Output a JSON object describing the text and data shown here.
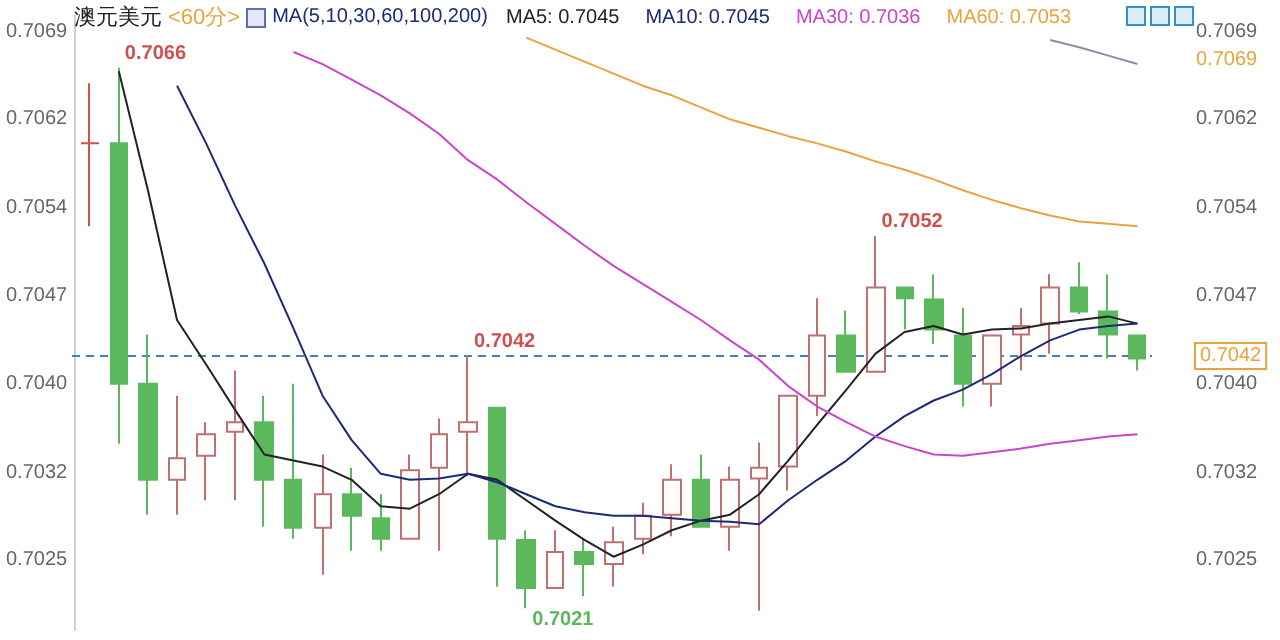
{
  "chart_data": {
    "type": "candlestick",
    "title": "澳元美元",
    "subtitle": "<60分>",
    "categories": [
      null,
      null,
      null,
      null,
      null,
      null,
      null,
      null,
      null,
      null,
      null,
      null,
      null,
      null,
      null,
      null,
      null,
      null,
      null,
      null,
      null,
      null,
      null,
      null,
      null,
      null,
      null,
      null,
      null,
      null,
      null,
      null,
      null,
      null,
      null,
      null,
      null
    ],
    "ohlc": [
      [
        0.70597,
        0.70647,
        0.70528,
        0.70597
      ],
      [
        0.70597,
        0.7066,
        0.70347,
        0.70397
      ],
      [
        0.70397,
        0.70438,
        0.70288,
        0.70317
      ],
      [
        0.70317,
        0.70387,
        0.70288,
        0.70335
      ],
      [
        0.70337,
        0.70365,
        0.703,
        0.70355
      ],
      [
        0.70357,
        0.70408,
        0.703,
        0.70365
      ],
      [
        0.70365,
        0.70387,
        0.70278,
        0.70317
      ],
      [
        0.70317,
        0.70397,
        0.70268,
        0.70277
      ],
      [
        0.70277,
        0.70338,
        0.70238,
        0.70305
      ],
      [
        0.70305,
        0.70327,
        0.70258,
        0.70287
      ],
      [
        0.70285,
        0.70305,
        0.70258,
        0.70268
      ],
      [
        0.70268,
        0.70338,
        0.70268,
        0.70325
      ],
      [
        0.70327,
        0.70368,
        0.70258,
        0.70355
      ],
      [
        0.70357,
        0.7042,
        0.7032,
        0.70365
      ],
      [
        0.70377,
        0.70377,
        0.70228,
        0.70268
      ],
      [
        0.70267,
        0.70275,
        0.7021,
        0.70227
      ],
      [
        0.70227,
        0.70275,
        0.70227,
        0.70257
      ],
      [
        0.70257,
        0.70268,
        0.7022,
        0.70247
      ],
      [
        0.70247,
        0.70278,
        0.70228,
        0.70265
      ],
      [
        0.70268,
        0.70298,
        0.70255,
        0.70287
      ],
      [
        0.70288,
        0.7033,
        0.7027,
        0.70317
      ],
      [
        0.70317,
        0.70338,
        0.70278,
        0.70278
      ],
      [
        0.70278,
        0.70328,
        0.70258,
        0.70317
      ],
      [
        0.70318,
        0.70348,
        0.70208,
        0.70327
      ],
      [
        0.70328,
        0.70387,
        0.70308,
        0.70387
      ],
      [
        0.70387,
        0.70468,
        0.7037,
        0.70437
      ],
      [
        0.70437,
        0.70458,
        0.70407,
        0.70407
      ],
      [
        0.70407,
        0.7052,
        0.70407,
        0.70477
      ],
      [
        0.70477,
        0.70477,
        0.70442,
        0.70468
      ],
      [
        0.70467,
        0.70488,
        0.7043,
        0.70442
      ],
      [
        0.70437,
        0.7046,
        0.70378,
        0.70397
      ],
      [
        0.70397,
        0.70437,
        0.70378,
        0.70437
      ],
      [
        0.70438,
        0.7046,
        0.70408,
        0.70445
      ],
      [
        0.70447,
        0.70488,
        0.70422,
        0.70477
      ],
      [
        0.70477,
        0.70498,
        0.70455,
        0.70457
      ],
      [
        0.70457,
        0.70488,
        0.70418,
        0.70438
      ],
      [
        0.70437,
        0.70437,
        0.70408,
        0.70418
      ]
    ],
    "colors": [
      "#d05050",
      "#5cb85c",
      "#5cb85c",
      "#c07070",
      "#c07070",
      "#c07070",
      "#5cb85c",
      "#5cb85c",
      "#c07070",
      "#5cb85c",
      "#5cb85c",
      "#c07070",
      "#c07070",
      "#c07070",
      "#5cb85c",
      "#5cb85c",
      "#c07070",
      "#5cb85c",
      "#c07070",
      "#c07070",
      "#c07070",
      "#5cb85c",
      "#c07070",
      "#c07070",
      "#c07070",
      "#c07070",
      "#5cb85c",
      "#c07070",
      "#5cb85c",
      "#5cb85c",
      "#5cb85c",
      "#c07070",
      "#c07070",
      "#c07070",
      "#5cb85c",
      "#5cb85c",
      "#5cb85c"
    ],
    "series": [
      {
        "type": "line",
        "name": "MA5: 0.7045",
        "color": "#222222",
        "values": [
          null,
          0.70657,
          0.70558,
          0.7045,
          0.70413,
          0.70375,
          0.70338,
          0.70333,
          0.70328,
          0.70317,
          0.70295,
          0.70293,
          0.70305,
          0.70322,
          0.70317,
          0.703,
          0.70283,
          0.70267,
          0.70253,
          0.70263,
          0.70275,
          0.70283,
          0.70288,
          0.70305,
          0.70333,
          0.70363,
          0.70392,
          0.70422,
          0.7044,
          0.70445,
          0.70438,
          0.70442,
          0.70443,
          0.70447,
          0.7045,
          0.70453,
          0.70447
        ]
      },
      {
        "type": "line",
        "name": "MA10: 0.7045",
        "color": "#1c2a78",
        "values": [
          null,
          null,
          null,
          0.70645,
          0.70597,
          0.70545,
          0.70497,
          0.70443,
          0.70387,
          0.7035,
          0.70322,
          0.70317,
          0.70318,
          0.70322,
          0.70315,
          0.70305,
          0.70295,
          0.7029,
          0.70287,
          0.70287,
          0.70285,
          0.70283,
          0.70282,
          0.7028,
          0.703,
          0.70317,
          0.70333,
          0.70353,
          0.7037,
          0.70383,
          0.70392,
          0.70405,
          0.7042,
          0.70433,
          0.70442,
          0.70445,
          0.70447
        ]
      },
      {
        "type": "line",
        "name": "MA30: 0.7036",
        "color": "#cc44cc",
        "values": [
          null,
          null,
          null,
          null,
          null,
          null,
          null,
          0.70673,
          0.70663,
          0.7065,
          0.70637,
          0.70622,
          0.70605,
          0.70583,
          0.70567,
          0.70548,
          0.7053,
          0.70512,
          0.70495,
          0.7048,
          0.70465,
          0.7045,
          0.70433,
          0.70417,
          0.70395,
          0.70378,
          0.70365,
          0.70353,
          0.70345,
          0.70338,
          0.70337,
          0.7034,
          0.70343,
          0.70347,
          0.7035,
          0.70353,
          0.70355
        ]
      },
      {
        "type": "line",
        "name": "MA60: 0.7053",
        "color": "#e8a33c",
        "values": [
          null,
          null,
          null,
          null,
          null,
          null,
          null,
          null,
          null,
          null,
          null,
          null,
          null,
          null,
          null,
          0.70685,
          0.70675,
          0.70665,
          0.70655,
          0.70645,
          0.70637,
          0.70627,
          0.70617,
          0.7061,
          0.70603,
          0.70597,
          0.7059,
          0.70582,
          0.70575,
          0.70567,
          0.70558,
          0.7055,
          0.70543,
          0.70537,
          0.70532,
          0.7053,
          0.70528
        ]
      },
      {
        "type": "line",
        "color": "#8c8ca8",
        "values": [
          null,
          null,
          null,
          null,
          null,
          null,
          null,
          null,
          null,
          null,
          null,
          null,
          null,
          null,
          null,
          null,
          null,
          null,
          null,
          null,
          null,
          null,
          null,
          null,
          null,
          null,
          null,
          null,
          null,
          null,
          null,
          null,
          null,
          0.70683,
          0.70677,
          0.7067,
          0.70663
        ]
      }
    ],
    "ylim": [
      0.70192,
      0.70703
    ],
    "yticks": [
      0.7025,
      {
        "value": 0.70323,
        "label": "0.7032"
      },
      {
        "value": 0.70397,
        "label": "0.7040"
      },
      0.7047,
      {
        "value": 0.70543,
        "label": "0.7054"
      },
      {
        "value": 0.70617,
        "label": "0.7062"
      },
      0.7069
    ],
    "y2lim": [
      0.70192,
      0.70703
    ],
    "y2ticks": [
      0.7025,
      {
        "value": 0.70323,
        "label": "0.7032"
      },
      {
        "value": 0.70397,
        "label": "0.7040"
      },
      0.7047,
      {
        "value": 0.70543,
        "label": "0.7054"
      },
      {
        "value": 0.70617,
        "label": "0.7062"
      },
      0.7069
    ],
    "ref_lines": [
      {
        "axis": "y",
        "value": 0.7042,
        "label": "0.7042",
        "color": "#4a7fb5",
        "line_style": "dashed"
      }
    ],
    "annotations": [
      "MA(5,10,30,60,100,200)",
      "0.7069",
      "0.7066",
      "0.7042",
      "0.7052",
      "0.7021"
    ],
    "legend": "top right",
    "grid": false,
    "marker": "none",
    "tick_labels": "y"
  }
}
